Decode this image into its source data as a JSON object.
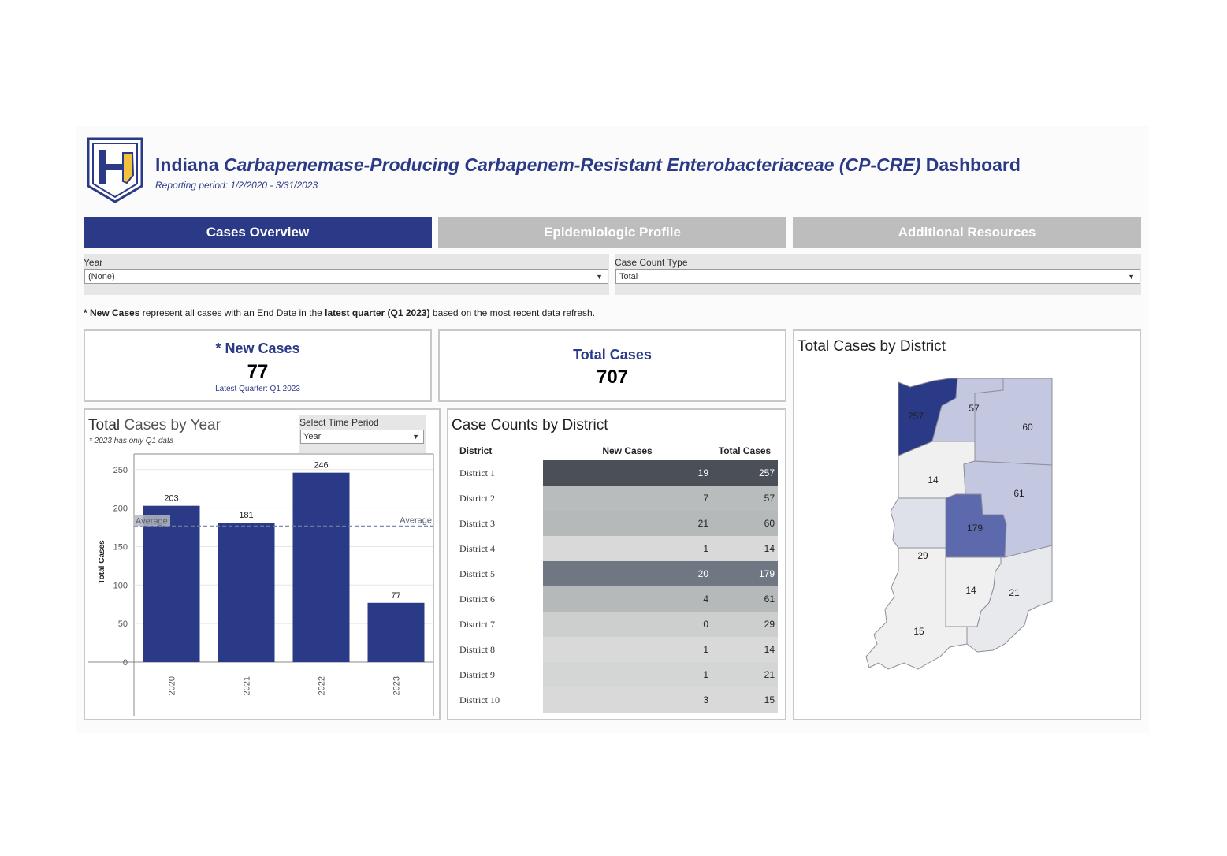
{
  "header": {
    "title_prefix": "Indiana ",
    "title_italic": "Carbapenemase-Producing Carbapenem-Resistant Enterobacteriaceae (CP-CRE)",
    "title_suffix": " Dashboard",
    "reporting_period": "Reporting period: 1/2/2020 - 3/31/2023"
  },
  "tabs": [
    {
      "label": "Cases Overview",
      "active": true
    },
    {
      "label": "Epidemiologic Profile",
      "active": false
    },
    {
      "label": "Additional Resources",
      "active": false
    }
  ],
  "filters": {
    "year": {
      "label": "Year",
      "value": "(None)"
    },
    "case_count_type": {
      "label": "Case Count Type",
      "value": "Total"
    }
  },
  "note": {
    "star_bold": "* New Cases",
    "text1": " represent all cases with an End Date in the ",
    "bold2": "latest quarter (Q1 2023)",
    "text2": " based on the most recent data refresh."
  },
  "kpi_new": {
    "title": "* New Cases",
    "value": "77",
    "subtitle": "Latest Quarter: Q1 2023"
  },
  "kpi_total": {
    "title": "Total Cases",
    "value": "707"
  },
  "year_chart": {
    "title_part1": "Total ",
    "title_part2": "Cases by Year",
    "footnote": "*  2023 has only Q1 data",
    "time_period_label": "Select Time Period",
    "time_period_value": "Year",
    "average_label": "Average"
  },
  "chart_data": {
    "type": "bar",
    "categories": [
      "2020",
      "2021",
      "2022",
      "2023"
    ],
    "values": [
      203,
      181,
      246,
      77
    ],
    "average": 176.75,
    "title": "Total Cases by Year",
    "xlabel": "",
    "ylabel": "Total Cases",
    "ylim": [
      0,
      260
    ],
    "yticks": [
      0,
      50,
      100,
      150,
      200,
      250
    ],
    "bar_color": "#2b3a87"
  },
  "district_table": {
    "title": "Case Counts by District",
    "headers": [
      "District",
      "New Cases",
      "Total Cases"
    ],
    "rows": [
      {
        "district": "District 1",
        "new": "19",
        "total": "257",
        "bg": "#4b4f58",
        "fg": "#ffffff"
      },
      {
        "district": "District 2",
        "new": "7",
        "total": "57",
        "bg": "#b9bcbd",
        "fg": "#222222"
      },
      {
        "district": "District 3",
        "new": "21",
        "total": "60",
        "bg": "#b6b9ba",
        "fg": "#222222"
      },
      {
        "district": "District 4",
        "new": "1",
        "total": "14",
        "bg": "#d9d9d9",
        "fg": "#222222"
      },
      {
        "district": "District 5",
        "new": "20",
        "total": "179",
        "bg": "#6f7882",
        "fg": "#ffffff"
      },
      {
        "district": "District 6",
        "new": "4",
        "total": "61",
        "bg": "#b6b9ba",
        "fg": "#222222"
      },
      {
        "district": "District 7",
        "new": "0",
        "total": "29",
        "bg": "#cdcfcf",
        "fg": "#222222"
      },
      {
        "district": "District 8",
        "new": "1",
        "total": "14",
        "bg": "#d9d9d9",
        "fg": "#222222"
      },
      {
        "district": "District 9",
        "new": "1",
        "total": "21",
        "bg": "#d4d5d5",
        "fg": "#222222"
      },
      {
        "district": "District 10",
        "new": "3",
        "total": "15",
        "bg": "#d9d9d9",
        "fg": "#222222"
      }
    ]
  },
  "district_map": {
    "title": "Total Cases by District",
    "labels": [
      "257",
      "57",
      "60",
      "14",
      "61",
      "179",
      "29",
      "14",
      "21",
      "15"
    ],
    "colors": {
      "d1": "#2b3a87",
      "d5": "#5c69ad",
      "d2": "#c3c8e0",
      "d3": "#c3c8e0",
      "d6": "#c3c8e0",
      "d7": "#dfe1ea",
      "d4": "#f0f0f0",
      "d8": "#f0f0f0",
      "d9": "#e8e9ed",
      "d10": "#f0f0f0"
    }
  }
}
